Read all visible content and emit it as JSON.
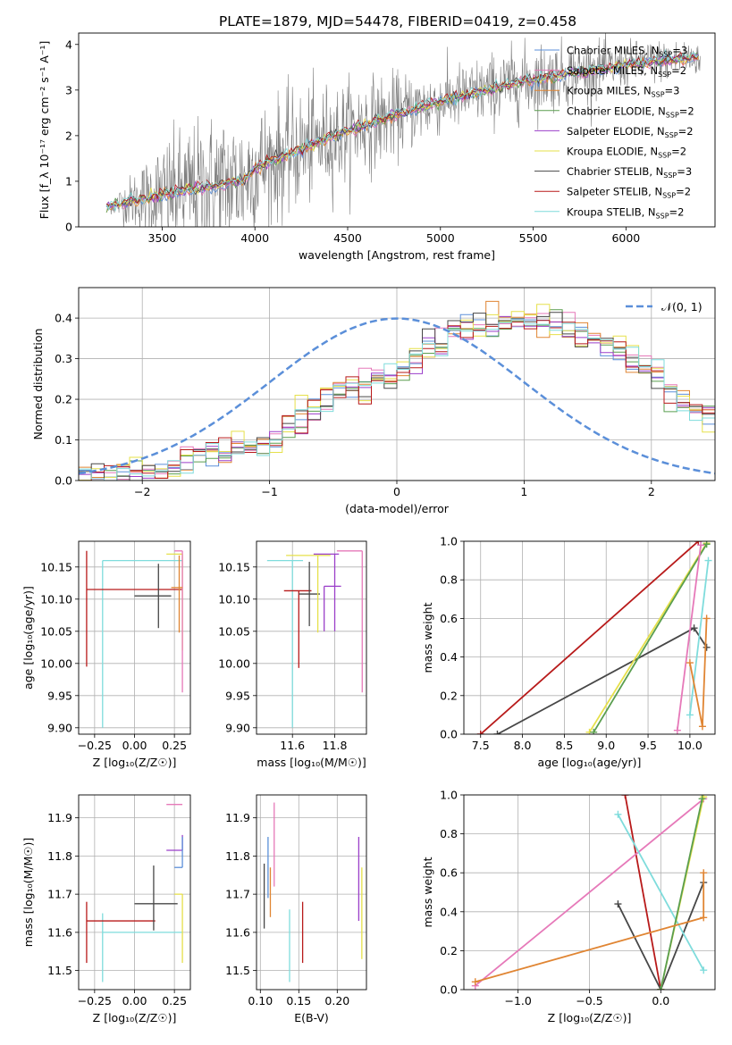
{
  "figure": {
    "title": "PLATE=1879, MJD=54478, FIBERID=0419, z=0.458",
    "colors": {
      "Chabrier MILES": "#5b8fd9",
      "Salpeter MILES": "#e679b9",
      "Kroupa MILES": "#e08533",
      "Chabrier ELODIE": "#5a9e4f",
      "Salpeter ELODIE": "#9b3fc9",
      "Kroupa ELODIE": "#e6e04a",
      "Chabrier STELIB": "#474747",
      "Salpeter STELIB": "#b81a1a",
      "Kroupa STELIB": "#7fdcdc",
      "data": "#808080",
      "gauss": "#5b8fd9",
      "grid": "#b0b0b0"
    }
  },
  "chart_data": [
    {
      "id": "spectrum",
      "type": "line",
      "xlabel": "wavelength [Angstrom, rest frame]",
      "ylabel": "Flux [f_λ 10⁻¹⁷ erg cm⁻² s⁻¹ A⁻¹]",
      "xlim": [
        3050,
        6480
      ],
      "ylim": [
        0,
        4.25
      ],
      "xticks": [
        "3500",
        "4000",
        "4500",
        "5000",
        "5500",
        "6000"
      ],
      "yticks": [
        "0",
        "1",
        "2",
        "3",
        "4"
      ],
      "grid": false,
      "legend_position": "top-right",
      "legend": [
        {
          "label": "Chabrier MILES, N",
          "sub": "SSP",
          "suffix": "=3",
          "color_key": "Chabrier MILES"
        },
        {
          "label": "Salpeter MILES, N",
          "sub": "SSP",
          "suffix": "=2",
          "color_key": "Salpeter MILES"
        },
        {
          "label": "Kroupa MILES, N",
          "sub": "SSP",
          "suffix": "=3",
          "color_key": "Kroupa MILES"
        },
        {
          "label": "Chabrier ELODIE, N",
          "sub": "SSP",
          "suffix": "=2",
          "color_key": "Chabrier ELODIE"
        },
        {
          "label": "Salpeter ELODIE, N",
          "sub": "SSP",
          "suffix": "=2",
          "color_key": "Salpeter ELODIE"
        },
        {
          "label": "Kroupa ELODIE, N",
          "sub": "SSP",
          "suffix": "=2",
          "color_key": "Kroupa ELODIE"
        },
        {
          "label": "Chabrier STELIB, N",
          "sub": "SSP",
          "suffix": "=3",
          "color_key": "Chabrier STELIB"
        },
        {
          "label": "Salpeter STELIB, N",
          "sub": "SSP",
          "suffix": "=2",
          "color_key": "Salpeter STELIB"
        },
        {
          "label": "Kroupa STELIB, N",
          "sub": "SSP",
          "suffix": "=2",
          "color_key": "Kroupa STELIB"
        }
      ],
      "model_continuum": [
        [
          3200,
          0.45
        ],
        [
          3400,
          0.62
        ],
        [
          3600,
          0.78
        ],
        [
          3800,
          0.92
        ],
        [
          3950,
          1.05
        ],
        [
          4000,
          1.3
        ],
        [
          4200,
          1.62
        ],
        [
          4400,
          1.95
        ],
        [
          4600,
          2.25
        ],
        [
          4800,
          2.5
        ],
        [
          5000,
          2.75
        ],
        [
          5200,
          2.95
        ],
        [
          5400,
          3.15
        ],
        [
          5600,
          3.3
        ],
        [
          5800,
          3.42
        ],
        [
          6000,
          3.55
        ],
        [
          6200,
          3.65
        ],
        [
          6400,
          3.72
        ]
      ],
      "data_noise_sigma": [
        [
          3200,
          0.05
        ],
        [
          3500,
          0.6
        ],
        [
          3800,
          0.8
        ],
        [
          4000,
          0.7
        ],
        [
          4500,
          0.55
        ],
        [
          5000,
          0.35
        ],
        [
          5500,
          0.4
        ],
        [
          6000,
          0.25
        ],
        [
          6400,
          0.2
        ]
      ]
    },
    {
      "id": "residuals",
      "type": "line",
      "xlabel": "(data-model)/error",
      "ylabel": "Normed distribution",
      "xlim": [
        -2.5,
        2.5
      ],
      "ylim": [
        0,
        0.475
      ],
      "xticks": [
        -2,
        -1,
        0,
        1,
        2
      ],
      "xtick_labels": [
        "−2",
        "−1",
        "0",
        "1",
        "2"
      ],
      "yticks": [
        0,
        0.1,
        0.2,
        0.3,
        0.4
      ],
      "ytick_labels": [
        "0.0",
        "0.1",
        "0.2",
        "0.3",
        "0.4"
      ],
      "grid": true,
      "legend_position": "top-right",
      "legend_label": "𝒩(0, 1)",
      "bin_width": 0.1,
      "bin_start": -2.5,
      "histogram": [
        0.01,
        0.01,
        0.012,
        0.015,
        0.02,
        0.025,
        0.03,
        0.04,
        0.05,
        0.06,
        0.065,
        0.07,
        0.08,
        0.085,
        0.095,
        0.11,
        0.13,
        0.15,
        0.18,
        0.2,
        0.22,
        0.23,
        0.235,
        0.255,
        0.25,
        0.27,
        0.3,
        0.33,
        0.33,
        0.37,
        0.38,
        0.38,
        0.385,
        0.39,
        0.395,
        0.4,
        0.39,
        0.385,
        0.37,
        0.36,
        0.35,
        0.33,
        0.32,
        0.3,
        0.28,
        0.26,
        0.23,
        0.2,
        0.18,
        0.15
      ]
    },
    {
      "id": "age-vs-Z",
      "type": "scatter",
      "xlabel": "Z [log₁₀(Z/Z☉)]",
      "ylabel": "age  [log₁₀(age/yr)]",
      "xlim": [
        -0.35,
        0.35
      ],
      "ylim": [
        9.89,
        10.19
      ],
      "xticks": [
        -0.25,
        0,
        0.25
      ],
      "xtick_labels": [
        "−0.25",
        "0.00",
        "0.25"
      ],
      "yticks": [
        9.9,
        9.95,
        10.0,
        10.05,
        10.1,
        10.15
      ],
      "ytick_labels": [
        "9.90",
        "9.95",
        "10.00",
        "10.05",
        "10.10",
        "10.15"
      ],
      "grid": true,
      "points": [
        {
          "x": -0.2,
          "y": 10.16,
          "xerr": [
            0.0,
            0.5
          ],
          "yerr": [
            0.26,
            0.0
          ],
          "key": "Kroupa STELIB"
        },
        {
          "x": -0.3,
          "y": 10.115,
          "xerr": [
            0.0,
            0.6
          ],
          "yerr": [
            0.12,
            0.06
          ],
          "key": "Salpeter STELIB"
        },
        {
          "x": 0.15,
          "y": 10.105,
          "xerr": [
            0.15,
            0.08
          ],
          "yerr": [
            0.05,
            0.05
          ],
          "key": "Chabrier STELIB"
        },
        {
          "x": 0.3,
          "y": 10.17,
          "xerr": [
            0.1,
            0.0
          ],
          "yerr": [
            0.15,
            0.0
          ],
          "key": "Kroupa ELODIE"
        },
        {
          "x": 0.3,
          "y": 10.175,
          "xerr": [
            0.05,
            0.0
          ],
          "yerr": [
            0.22,
            0.0
          ],
          "key": "Salpeter MILES"
        },
        {
          "x": 0.28,
          "y": 10.118,
          "xerr": [
            0.05,
            0.02
          ],
          "yerr": [
            0.07,
            0.05
          ],
          "key": "Kroupa MILES"
        }
      ]
    },
    {
      "id": "age-vs-mass",
      "type": "scatter",
      "xlabel": "mass [log₁₀(M/M☉)]",
      "ylabel": "",
      "xlim": [
        11.43,
        11.95
      ],
      "ylim": [
        9.89,
        10.19
      ],
      "xticks": [
        11.6,
        11.8
      ],
      "xtick_labels": [
        "11.6",
        "11.8"
      ],
      "yticks": [
        9.9,
        9.95,
        10.0,
        10.05,
        10.1,
        10.15
      ],
      "ytick_labels": [
        "9.90",
        "9.95",
        "10.00",
        "10.05",
        "10.10",
        "10.15"
      ],
      "grid": true,
      "points": [
        {
          "x": 11.6,
          "y": 10.16,
          "xerr": [
            0.12,
            0.05
          ],
          "yerr": [
            0.26,
            0.0
          ],
          "key": "Kroupa STELIB"
        },
        {
          "x": 11.63,
          "y": 10.113,
          "xerr": [
            0.07,
            0.06
          ],
          "yerr": [
            0.12,
            0.0
          ],
          "key": "Salpeter STELIB"
        },
        {
          "x": 11.68,
          "y": 10.108,
          "xerr": [
            0.05,
            0.05
          ],
          "yerr": [
            0.05,
            0.05
          ],
          "key": "Chabrier STELIB"
        },
        {
          "x": 11.72,
          "y": 10.168,
          "xerr": [
            0.15,
            0.06
          ],
          "yerr": [
            0.12,
            0.0
          ],
          "key": "Kroupa ELODIE"
        },
        {
          "x": 11.8,
          "y": 10.17,
          "xerr": [
            0.1,
            0.02
          ],
          "yerr": [
            0.12,
            0.0
          ],
          "key": "Salpeter ELODIE"
        },
        {
          "x": 11.93,
          "y": 10.175,
          "xerr": [
            0.12,
            0.0
          ],
          "yerr": [
            0.22,
            0.0
          ],
          "key": "Salpeter MILES"
        },
        {
          "x": 11.75,
          "y": 10.12,
          "xerr": [
            0.0,
            0.08
          ],
          "yerr": [
            0.07,
            0.0
          ],
          "key": "Salpeter ELODIE"
        }
      ]
    },
    {
      "id": "weight-vs-age",
      "type": "line",
      "xlabel": "age  [log₁₀(age/yr)]",
      "ylabel": "mass weight",
      "xlim": [
        7.3,
        10.3
      ],
      "ylim": [
        0,
        1.0
      ],
      "xticks": [
        7.5,
        8.0,
        8.5,
        9.0,
        9.5,
        10.0
      ],
      "xtick_labels": [
        "7.5",
        "8.0",
        "8.5",
        "9.0",
        "9.5",
        "10.0"
      ],
      "yticks": [
        0,
        0.2,
        0.4,
        0.6,
        0.8,
        1.0
      ],
      "ytick_labels": [
        "0.0",
        "0.2",
        "0.4",
        "0.6",
        "0.8",
        "1.0"
      ],
      "grid": true,
      "series": [
        {
          "key": "Salpeter STELIB",
          "points": [
            [
              7.5,
              0.0
            ],
            [
              10.1,
              1.0
            ]
          ]
        },
        {
          "key": "Chabrier STELIB",
          "points": [
            [
              7.7,
              0.0
            ],
            [
              10.05,
              0.55
            ],
            [
              10.2,
              0.45
            ]
          ]
        },
        {
          "key": "Kroupa ELODIE",
          "points": [
            [
              8.8,
              0.01
            ],
            [
              10.2,
              0.99
            ]
          ]
        },
        {
          "key": "Chabrier ELODIE",
          "points": [
            [
              8.85,
              0.01
            ],
            [
              10.2,
              0.985
            ]
          ]
        },
        {
          "key": "Kroupa STELIB",
          "points": [
            [
              10.0,
              0.1
            ],
            [
              10.22,
              0.9
            ]
          ]
        },
        {
          "key": "Salpeter MILES",
          "points": [
            [
              9.85,
              0.02
            ],
            [
              10.13,
              0.98
            ]
          ]
        },
        {
          "key": "Kroupa MILES",
          "points": [
            [
              10.0,
              0.37
            ],
            [
              10.15,
              0.04
            ],
            [
              10.2,
              0.6
            ]
          ]
        }
      ]
    },
    {
      "id": "mass-vs-Z",
      "type": "scatter",
      "xlabel": "Z [log₁₀(Z/Z☉)]",
      "ylabel": "mass [log₁₀(M/M☉)]",
      "xlim": [
        -0.35,
        0.35
      ],
      "ylim": [
        11.45,
        11.96
      ],
      "xticks": [
        -0.25,
        0,
        0.25
      ],
      "xtick_labels": [
        "−0.25",
        "0.00",
        "0.25"
      ],
      "yticks": [
        11.5,
        11.6,
        11.7,
        11.8,
        11.9
      ],
      "ytick_labels": [
        "11.5",
        "11.6",
        "11.7",
        "11.8",
        "11.9"
      ],
      "grid": true,
      "points": [
        {
          "x": -0.2,
          "y": 11.6,
          "xerr": [
            0.0,
            0.5
          ],
          "yerr": [
            0.13,
            0.05
          ],
          "key": "Kroupa STELIB"
        },
        {
          "x": -0.3,
          "y": 11.63,
          "xerr": [
            0.0,
            0.43
          ],
          "yerr": [
            0.11,
            0.05
          ],
          "key": "Salpeter STELIB"
        },
        {
          "x": 0.12,
          "y": 11.675,
          "xerr": [
            0.12,
            0.15
          ],
          "yerr": [
            0.07,
            0.1
          ],
          "key": "Chabrier STELIB"
        },
        {
          "x": 0.3,
          "y": 11.935,
          "xerr": [
            0.1,
            0.0
          ],
          "yerr": [
            0.0,
            0.0
          ],
          "key": "Salpeter MILES"
        },
        {
          "x": 0.3,
          "y": 11.815,
          "xerr": [
            0.1,
            0.0
          ],
          "yerr": [
            0.0,
            0.04
          ],
          "key": "Salpeter ELODIE"
        },
        {
          "x": 0.3,
          "y": 11.77,
          "xerr": [
            0.05,
            0.0
          ],
          "yerr": [
            0.0,
            0.08
          ],
          "key": "Chabrier MILES"
        },
        {
          "x": 0.3,
          "y": 11.7,
          "xerr": [
            0.05,
            0.0
          ],
          "yerr": [
            0.18,
            0.0
          ],
          "key": "Kroupa ELODIE"
        }
      ]
    },
    {
      "id": "mass-vs-EBV",
      "type": "scatter",
      "xlabel": "E(B-V)",
      "ylabel": "",
      "xlim": [
        0.095,
        0.238
      ],
      "ylim": [
        11.45,
        11.96
      ],
      "xticks": [
        0.1,
        0.15,
        0.2
      ],
      "xtick_labels": [
        "0.10",
        "0.15",
        "0.20"
      ],
      "yticks": [
        11.5,
        11.6,
        11.7,
        11.8,
        11.9
      ],
      "ytick_labels": [
        "11.5",
        "11.6",
        "11.7",
        "11.8",
        "11.9"
      ],
      "grid": true,
      "points": [
        {
          "x": 0.105,
          "y": 11.7,
          "xerr": [
            0,
            0
          ],
          "yerr": [
            0.09,
            0.08
          ],
          "key": "Chabrier STELIB"
        },
        {
          "x": 0.11,
          "y": 11.77,
          "xerr": [
            0,
            0
          ],
          "yerr": [
            0.08,
            0.08
          ],
          "key": "Chabrier MILES"
        },
        {
          "x": 0.113,
          "y": 11.74,
          "xerr": [
            0,
            0
          ],
          "yerr": [
            0.1,
            0.03
          ],
          "key": "Kroupa MILES"
        },
        {
          "x": 0.118,
          "y": 11.83,
          "xerr": [
            0,
            0
          ],
          "yerr": [
            0.11,
            0.11
          ],
          "key": "Salpeter MILES"
        },
        {
          "x": 0.138,
          "y": 11.58,
          "xerr": [
            0,
            0
          ],
          "yerr": [
            0.11,
            0.08
          ],
          "key": "Kroupa STELIB"
        },
        {
          "x": 0.155,
          "y": 11.6,
          "xerr": [
            0,
            0
          ],
          "yerr": [
            0.08,
            0.08
          ],
          "key": "Salpeter STELIB"
        },
        {
          "x": 0.228,
          "y": 11.74,
          "xerr": [
            0,
            0
          ],
          "yerr": [
            0.11,
            0.11
          ],
          "key": "Salpeter ELODIE"
        },
        {
          "x": 0.232,
          "y": 11.65,
          "xerr": [
            0,
            0
          ],
          "yerr": [
            0.12,
            0.12
          ],
          "key": "Kroupa ELODIE"
        }
      ]
    },
    {
      "id": "weight-vs-Z",
      "type": "line",
      "xlabel": "Z [log₁₀(Z/Z☉)]",
      "ylabel": "mass weight",
      "xlim": [
        -1.38,
        0.38
      ],
      "ylim": [
        0,
        1.0
      ],
      "xticks": [
        -1.0,
        -0.5,
        0.0
      ],
      "xtick_labels": [
        "−1.0",
        "−0.5",
        "0.0"
      ],
      "yticks": [
        0,
        0.2,
        0.4,
        0.6,
        0.8,
        1.0
      ],
      "ytick_labels": [
        "0.0",
        "0.2",
        "0.4",
        "0.6",
        "0.8",
        "1.0"
      ],
      "grid": true,
      "series": [
        {
          "key": "Salpeter STELIB",
          "points": [
            [
              -0.25,
              1.0
            ],
            [
              0.0,
              0.0
            ]
          ]
        },
        {
          "key": "Chabrier STELIB",
          "points": [
            [
              -0.3,
              0.44
            ],
            [
              0.0,
              0.0
            ],
            [
              0.3,
              0.55
            ]
          ]
        },
        {
          "key": "Salpeter MILES",
          "points": [
            [
              -1.3,
              0.02
            ],
            [
              0.3,
              0.98
            ]
          ]
        },
        {
          "key": "Kroupa STELIB",
          "points": [
            [
              -0.3,
              0.9
            ],
            [
              0.3,
              0.1
            ]
          ]
        },
        {
          "key": "Kroupa ELODIE",
          "points": [
            [
              0.0,
              0.0
            ],
            [
              0.3,
              0.99
            ]
          ]
        },
        {
          "key": "Chabrier ELODIE",
          "points": [
            [
              0.0,
              0.0
            ],
            [
              0.29,
              0.98
            ]
          ]
        },
        {
          "key": "Kroupa MILES",
          "points": [
            [
              -1.3,
              0.04
            ],
            [
              0.3,
              0.37
            ],
            [
              0.3,
              0.6
            ]
          ]
        }
      ]
    }
  ]
}
